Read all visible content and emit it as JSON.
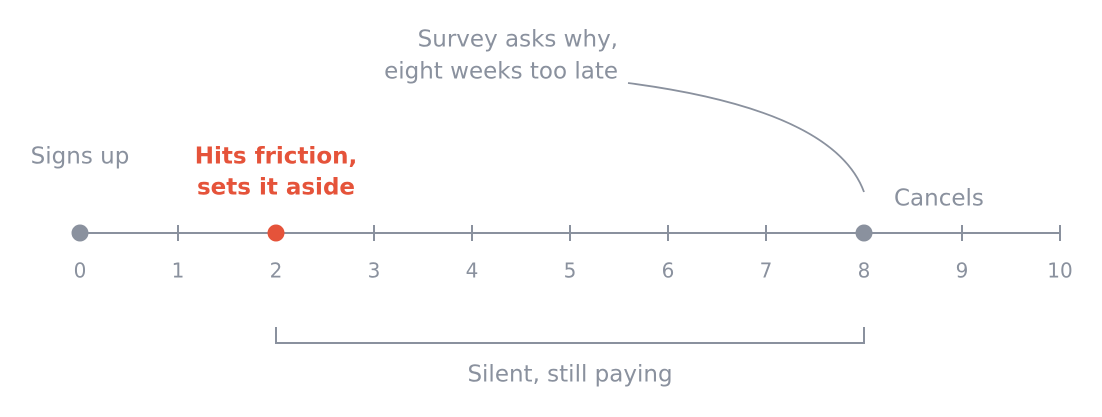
{
  "chart_data": {
    "type": "timeline",
    "xlim": [
      0,
      10
    ],
    "xticks": [
      0,
      1,
      2,
      3,
      4,
      5,
      6,
      7,
      8,
      9,
      10
    ],
    "axis_color": "#8a919e",
    "events": [
      {
        "x": 0,
        "label": [
          "Signs up"
        ],
        "color": "#8a919e",
        "emphasis": false
      },
      {
        "x": 2,
        "label": [
          "Hits friction,",
          "sets it aside"
        ],
        "color": "#e5533a",
        "emphasis": true
      },
      {
        "x": 8,
        "label": [
          "Cancels"
        ],
        "color": "#8a919e",
        "emphasis": false
      }
    ],
    "span": {
      "start": 2,
      "end": 8,
      "label": "Silent, still paying"
    },
    "annotation": {
      "lines": [
        "Survey asks why,",
        "eight weeks too late"
      ],
      "x": 8
    }
  }
}
